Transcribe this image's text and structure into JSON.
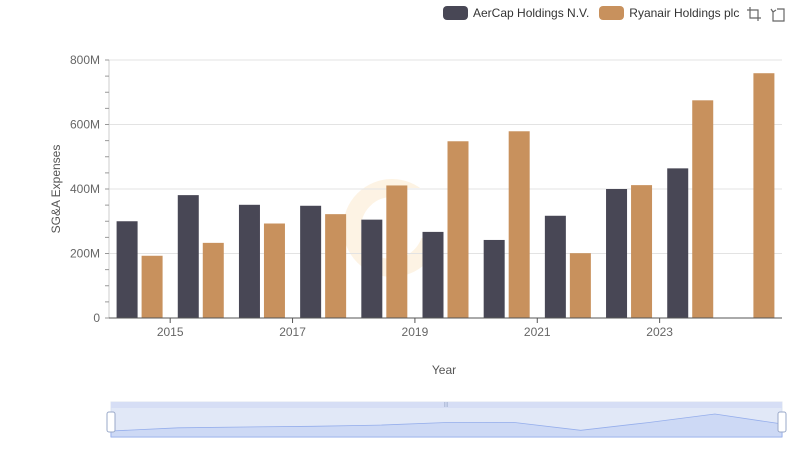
{
  "chart_data": {
    "type": "bar",
    "title": "",
    "xlabel": "Year",
    "ylabel": "SG&A Expenses",
    "categories": [
      "2014",
      "2015",
      "2016",
      "2017",
      "2018",
      "2019",
      "2020",
      "2021",
      "2022",
      "2023",
      "2024"
    ],
    "x_tick_labels": [
      "2015",
      "2017",
      "2019",
      "2021",
      "2023"
    ],
    "y_tick_labels": [
      "0",
      "200M",
      "400M",
      "600M",
      "800M"
    ],
    "ylim": [
      0,
      800
    ],
    "y_unit": "M",
    "series": [
      {
        "name": "AerCap Holdings N.V.",
        "color": "#484755",
        "values": [
          300,
          381,
          351,
          348,
          305,
          267,
          242,
          317,
          400,
          464,
          null
        ]
      },
      {
        "name": "Ryanair Holdings plc",
        "color": "#c8915d",
        "values": [
          193,
          233,
          293,
          322,
          411,
          548,
          579,
          201,
          412,
          675,
          759
        ]
      }
    ],
    "legend_position": "top-right",
    "grid": true
  },
  "legend": {
    "items": [
      {
        "label": "AerCap Holdings N.V.",
        "color": "#484755"
      },
      {
        "label": "Ryanair Holdings plc",
        "color": "#c8915d"
      }
    ]
  },
  "toolbox": {
    "icons": [
      "zoom-icon",
      "restore-icon"
    ]
  }
}
